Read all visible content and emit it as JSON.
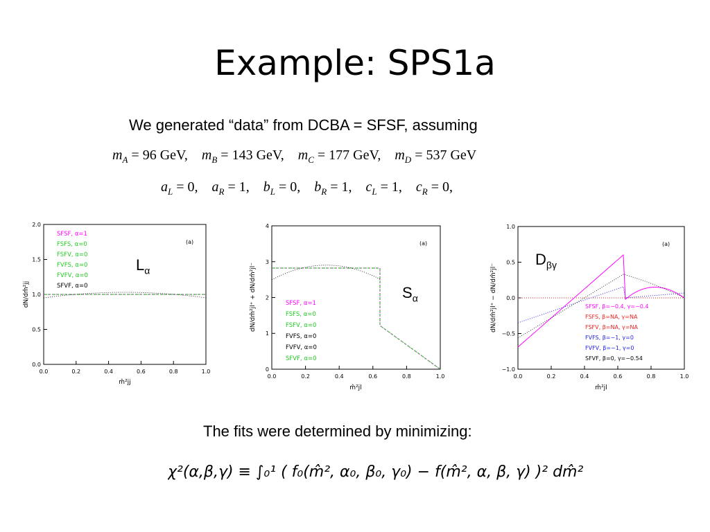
{
  "slide": {
    "title": "Example:  SPS1a",
    "intro": "We generated “data” from DCBA = SFSF, assuming",
    "masses_equation": "m_A = 96 GeV,   m_B = 143 GeV,   m_C = 177 GeV,   m_D = 537 GeV",
    "couplings_equation": "a_L = 0,   a_R = 1,   b_L = 0,   b_R = 1,   c_L = 1,   c_R = 0,",
    "fits_text": "The fits were determined by minimizing:",
    "chi2_formula": "χ²(α,β,γ) ≡ ∫₀¹ ( f₀(m̂², α₀, β₀, γ₀) − f(m̂², α, β, γ) )² dm̂²"
  },
  "eq_parts": {
    "mA": "96 GeV,",
    "mB": "143 GeV,",
    "mC": "177 GeV,",
    "mD": "537 GeV",
    "aL": "0,",
    "aR": "1,",
    "bL": "0,",
    "bR": "1,",
    "cL": "1,",
    "cR": "0,"
  },
  "plots": [
    {
      "label_main": "L",
      "label_sub": "α",
      "panel_tag": "(a)",
      "ylabel": "dN/dm̂²jj",
      "xlabel": "m̂²jj",
      "xticks": [
        "0.0",
        "0.2",
        "0.4",
        "0.6",
        "0.8",
        "1.0"
      ],
      "yticks": [
        "0.0",
        "0.5",
        "1.0",
        "1.5",
        "2.0"
      ],
      "legend": [
        {
          "text": "SFSF,  α=1",
          "color": "#ff00ff"
        },
        {
          "text": "FSFS,  α=0",
          "color": "#22cc22"
        },
        {
          "text": "FSFV,  α=0",
          "color": "#22cc22"
        },
        {
          "text": "FVFS,  α=0",
          "color": "#22cc22"
        },
        {
          "text": "FVFV,  α=0",
          "color": "#22cc22"
        },
        {
          "text": "SFVF,  α=0",
          "color": "#000000"
        }
      ]
    },
    {
      "label_main": "S",
      "label_sub": "α",
      "panel_tag": "(a)",
      "ylabel": "dN/dm̂²jl⁺ + dN/dm̂²jl⁻",
      "xlabel": "m̂²jl",
      "xticks": [
        "0.0",
        "0.2",
        "0.4",
        "0.6",
        "0.8",
        "1.0"
      ],
      "yticks": [
        "0",
        "1",
        "2",
        "3",
        "4"
      ],
      "legend": [
        {
          "text": "SFSF,  α=1",
          "color": "#ff00ff"
        },
        {
          "text": "FSFS,  α=0",
          "color": "#22cc22"
        },
        {
          "text": "FSFV,  α=0",
          "color": "#22cc22"
        },
        {
          "text": "FVFS,  α=0",
          "color": "#000000"
        },
        {
          "text": "FVFV,  α=0",
          "color": "#000000"
        },
        {
          "text": "SFVF,  α=0",
          "color": "#22cc22"
        }
      ]
    },
    {
      "label_main": "D",
      "label_sub": "βγ",
      "panel_tag": "(a)",
      "ylabel": "dN/dm̂²jl⁺ − dN/dm̂²jl⁻",
      "xlabel": "m̂²jl",
      "xticks": [
        "0.0",
        "0.2",
        "0.4",
        "0.6",
        "0.8",
        "1.0"
      ],
      "yticks": [
        "−1.0",
        "−0.5",
        "0.0",
        "0.5",
        "1.0"
      ],
      "legend": [
        {
          "text": "SFSF,  β=−0.4,  γ=−0.4",
          "color": "#ff00ff"
        },
        {
          "text": "FSFS,  β=NA,     γ=NA",
          "color": "#ee2222"
        },
        {
          "text": "FSFV,  β=NA,     γ=NA",
          "color": "#ee2222"
        },
        {
          "text": "FVFS,  β=−1,      γ=0",
          "color": "#2222ee"
        },
        {
          "text": "FVFV,  β=−1,      γ=0",
          "color": "#2222ee"
        },
        {
          "text": "SFVF,  β=0,        γ=−0.54",
          "color": "#000000"
        }
      ]
    }
  ]
}
